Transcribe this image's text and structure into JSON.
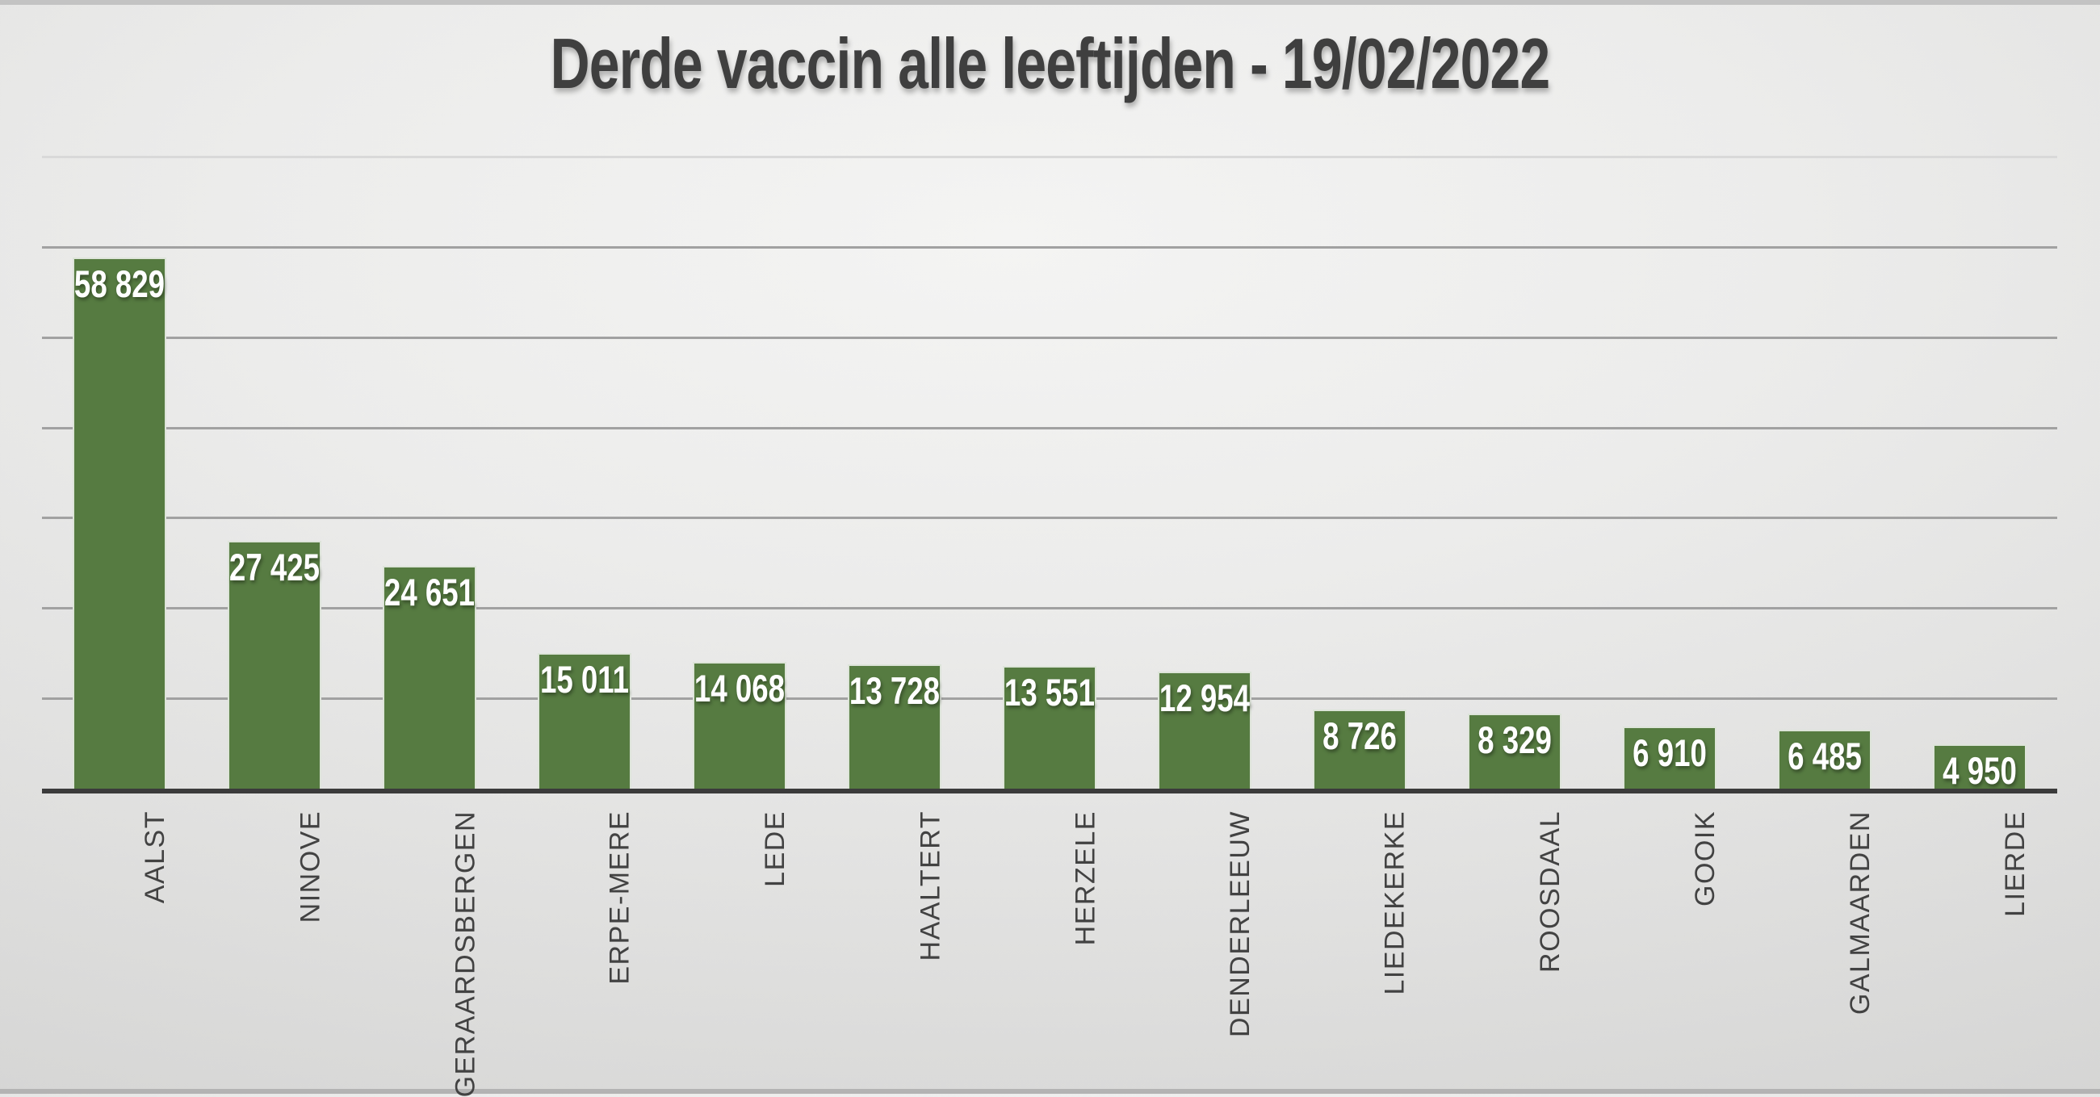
{
  "title": "Derde vaccin alle leeftijden - 19/02/2022",
  "colors": {
    "bar": "#567B41",
    "axis": "#3B3B3B",
    "gridline": "#A1A1A1",
    "gridline_top": "#D9D9D9",
    "title_text": "#3F3F3F",
    "category_text": "#424242",
    "value_text": "#FFFFFF",
    "background_center": "#F4F4F3",
    "background_edge": "#C2C2C1"
  },
  "chart_data": {
    "type": "bar",
    "title": "Derde vaccin alle leeftijden - 19/02/2022",
    "categories": [
      "AALST",
      "NINOVE",
      "GERAARDSBERGEN",
      "ERPE-MERE",
      "LEDE",
      "HAALTERT",
      "HERZELE",
      "DENDERLEEUW",
      "LIEDEKERKE",
      "ROOSDAAL",
      "GOOIK",
      "GALMAARDEN",
      "LIERDE"
    ],
    "values": [
      58829,
      27425,
      24651,
      15011,
      14068,
      13728,
      13551,
      12954,
      8726,
      8329,
      6910,
      6485,
      4950
    ],
    "value_labels": [
      "58 829",
      "27 425",
      "24 651",
      "15 011",
      "14 068",
      "13 728",
      "13 551",
      "12 954",
      "8 726",
      "8 329",
      "6 910",
      "6 485",
      "4 950"
    ],
    "xlabel": "",
    "ylabel": "",
    "ylim": [
      0,
      70000
    ],
    "y_gridlines": [
      10000,
      20000,
      30000,
      40000,
      50000,
      60000,
      70000
    ],
    "y_axis_tick_labels_visible": false,
    "grid": "horizontal",
    "legend": "none",
    "bar_label_position": "inside-top",
    "category_label_rotation_degrees": -90
  }
}
